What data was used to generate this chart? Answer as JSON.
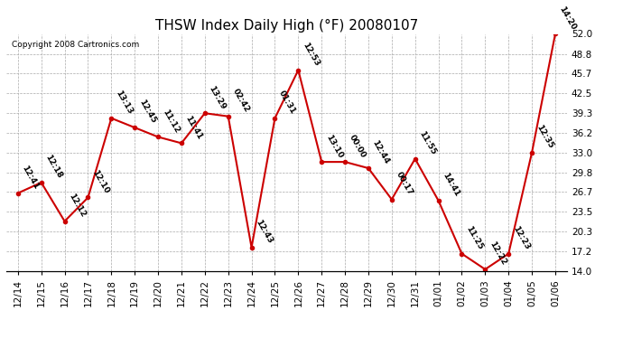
{
  "title": "THSW Index Daily High (°F) 20080107",
  "copyright": "Copyright 2008 Cartronics.com",
  "x_labels": [
    "12/14",
    "12/15",
    "12/16",
    "12/17",
    "12/18",
    "12/19",
    "12/20",
    "12/21",
    "12/22",
    "12/23",
    "12/24",
    "12/25",
    "12/26",
    "12/27",
    "12/28",
    "12/29",
    "12/30",
    "12/31",
    "01/01",
    "01/02",
    "01/03",
    "01/04",
    "01/05",
    "01/06"
  ],
  "y_values": [
    26.5,
    28.2,
    22.0,
    25.8,
    38.5,
    37.0,
    35.5,
    34.5,
    39.3,
    38.8,
    17.8,
    38.5,
    46.2,
    31.5,
    31.5,
    30.5,
    25.5,
    32.0,
    25.3,
    16.8,
    14.3,
    16.8,
    33.0,
    52.0
  ],
  "time_labels": [
    "12:41",
    "12:18",
    "12:12",
    "12:10",
    "13:13",
    "12:45",
    "11:12",
    "11:41",
    "13:29",
    "02:42",
    "12:43",
    "01:31",
    "12:53",
    "13:10",
    "00:00",
    "12:44",
    "00:17",
    "11:55",
    "14:41",
    "11:25",
    "12:22",
    "12:23",
    "12:35",
    "14:20"
  ],
  "ylim": [
    14.0,
    52.0
  ],
  "yticks": [
    14.0,
    17.2,
    20.3,
    23.5,
    26.7,
    29.8,
    33.0,
    36.2,
    39.3,
    42.5,
    45.7,
    48.8,
    52.0
  ],
  "line_color": "#cc0000",
  "marker_color": "#cc0000",
  "grid_color": "#aaaaaa",
  "bg_color": "#ffffff",
  "title_fontsize": 11,
  "label_fontsize": 6.5,
  "tick_fontsize": 7.5,
  "copyright_fontsize": 6.5
}
